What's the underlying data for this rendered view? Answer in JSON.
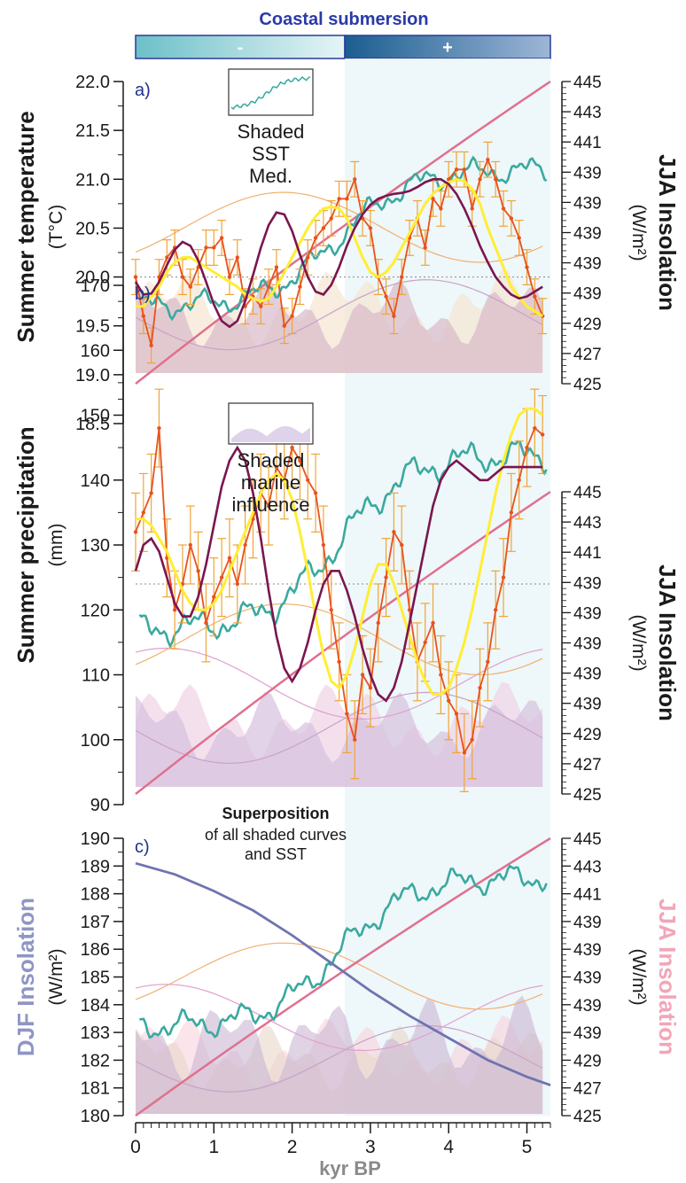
{
  "header": {
    "banner_title": "Coastal submersion",
    "minus_label": "-",
    "plus_label": "+"
  },
  "colors": {
    "sst": "#3aa99f",
    "jja": "#e0708e",
    "djf": "#6f74b0",
    "data_points": "#e8521e",
    "error_bars": "#f0a437",
    "smooth_yellow": "#ffee33",
    "smooth_purple": "#7a1650",
    "banner_light": "#8ed0d6",
    "banner_dark": "#1f6e9a",
    "axis_dark": "#1a1a1a",
    "panel_letter": "#23318c"
  },
  "shared_axis": {
    "xlabel": "kyr BP",
    "xlim": [
      0,
      5.3
    ],
    "ticks": [
      "0",
      "1",
      "2",
      "3",
      "4",
      "5"
    ]
  },
  "right_axis": {
    "ticks": [
      "445",
      "443",
      "441",
      "439",
      "439",
      "439",
      "439",
      "439",
      "429",
      "427",
      "425"
    ]
  },
  "chart_data": [
    {
      "type": "line",
      "panel": "a)",
      "ylabel_main": "Summer temperature",
      "ylabel_unit": "(T°C)",
      "right_label_main": "JJA Insolation",
      "right_label_unit": "(W/m²)",
      "ylim": [
        18.5,
        22.0
      ],
      "yticks": [
        "22.0",
        "21.5",
        "21.0",
        "20.5",
        "20.0",
        "19.5",
        "19.0",
        "18.5"
      ],
      "reference_line": 20.0,
      "inset_label": [
        "Shaded",
        "SST",
        "Med."
      ],
      "x": [
        0.0,
        0.1,
        0.2,
        0.3,
        0.4,
        0.5,
        0.6,
        0.7,
        0.8,
        0.9,
        1.0,
        1.1,
        1.2,
        1.3,
        1.4,
        1.5,
        1.6,
        1.7,
        1.8,
        1.9,
        2.0,
        2.1,
        2.2,
        2.3,
        2.4,
        2.5,
        2.6,
        2.7,
        2.8,
        2.9,
        3.0,
        3.1,
        3.2,
        3.3,
        3.4,
        3.5,
        3.6,
        3.7,
        3.8,
        3.9,
        4.0,
        4.1,
        4.2,
        4.3,
        4.4,
        4.5,
        4.6,
        4.7,
        4.8,
        4.9,
        5.0,
        5.1,
        5.2
      ],
      "series": [
        {
          "name": "",
          "values": [
            20.0,
            19.6,
            19.3,
            20.0,
            20.2,
            20.3,
            20.0,
            19.9,
            20.1,
            20.3,
            20.3,
            20.4,
            20.0,
            20.2,
            19.7,
            19.8,
            19.7,
            19.9,
            20.1,
            19.5,
            19.6,
            19.9,
            20.2,
            20.4,
            20.5,
            20.6,
            20.8,
            20.8,
            21.0,
            20.6,
            20.5,
            20.0,
            19.8,
            19.6,
            20.0,
            20.4,
            20.6,
            20.3,
            20.8,
            20.7,
            21.0,
            21.1,
            21.1,
            20.7,
            21.0,
            21.2,
            21.0,
            20.7,
            20.6,
            20.4,
            20.1,
            19.8,
            19.6
          ]
        },
        {
          "name": "",
          "values": [
            19.7,
            19.7,
            19.8,
            19.9,
            20.05,
            20.15,
            20.2,
            20.2,
            20.15,
            20.1,
            20.05,
            20.0,
            19.95,
            19.9,
            19.82,
            19.78,
            19.75,
            19.78,
            19.9,
            20.05,
            20.2,
            20.35,
            20.5,
            20.62,
            20.7,
            20.72,
            20.7,
            20.6,
            20.4,
            20.2,
            20.05,
            20.0,
            20.05,
            20.15,
            20.3,
            20.45,
            20.6,
            20.75,
            20.85,
            20.92,
            20.97,
            21.0,
            20.98,
            20.9,
            20.75,
            20.5,
            20.3,
            20.1,
            19.9,
            19.8,
            19.7,
            19.65,
            19.6
          ]
        },
        {
          "name": "",
          "values": [
            19.95,
            19.82,
            19.83,
            19.95,
            20.12,
            20.28,
            20.36,
            20.32,
            20.17,
            19.95,
            19.72,
            19.55,
            19.49,
            19.55,
            19.75,
            20.02,
            20.3,
            20.53,
            20.66,
            20.64,
            20.47,
            20.23,
            20.0,
            19.85,
            19.82,
            19.92,
            20.1,
            20.32,
            20.5,
            20.64,
            20.74,
            20.8,
            20.83,
            20.85,
            20.86,
            20.88,
            20.92,
            20.97,
            21.0,
            21.0,
            20.95,
            20.85,
            20.7,
            20.52,
            20.32,
            20.15,
            20.0,
            19.9,
            19.82,
            19.78,
            19.8,
            19.85,
            19.9
          ]
        }
      ]
    },
    {
      "type": "line",
      "panel": "b)",
      "ylabel_main": "Summer precipitation",
      "ylabel_unit": "(mm)",
      "right_label_main": "JJA Insolation",
      "right_label_unit": "(W/m²)",
      "ylim": [
        90,
        170
      ],
      "yticks": [
        "170",
        "160",
        "150",
        "140",
        "130",
        "120",
        "110",
        "100",
        "90"
      ],
      "reference_line": 124,
      "inset_label": [
        "Shaded",
        "marine",
        "influence"
      ],
      "x": [
        0.0,
        0.1,
        0.2,
        0.3,
        0.4,
        0.5,
        0.6,
        0.7,
        0.8,
        0.9,
        1.0,
        1.1,
        1.2,
        1.3,
        1.4,
        1.5,
        1.6,
        1.7,
        1.8,
        1.9,
        2.0,
        2.1,
        2.2,
        2.3,
        2.4,
        2.5,
        2.6,
        2.7,
        2.8,
        2.9,
        3.0,
        3.1,
        3.2,
        3.3,
        3.4,
        3.5,
        3.6,
        3.7,
        3.8,
        3.9,
        4.0,
        4.1,
        4.2,
        4.3,
        4.4,
        4.5,
        4.6,
        4.7,
        4.8,
        4.9,
        5.0,
        5.1,
        5.2
      ],
      "series": [
        {
          "name": "",
          "values": [
            132,
            135,
            138,
            148,
            128,
            120,
            124,
            130,
            126,
            118,
            122,
            125,
            128,
            124,
            130,
            134,
            138,
            136,
            142,
            140,
            145,
            143,
            140,
            138,
            130,
            120,
            112,
            104,
            100,
            110,
            108,
            118,
            125,
            132,
            130,
            120,
            112,
            115,
            118,
            110,
            106,
            104,
            98,
            100,
            108,
            112,
            120,
            125,
            135,
            140,
            145,
            148,
            147
          ]
        },
        {
          "name": "",
          "values": [
            134,
            134,
            133,
            131,
            129,
            126,
            123,
            121,
            120,
            120,
            121,
            123,
            126,
            129,
            132,
            135,
            138,
            140,
            141,
            140,
            137,
            132,
            126,
            119,
            113,
            109,
            108,
            110,
            114,
            119,
            124,
            127,
            127,
            124,
            120,
            116,
            112,
            109,
            107,
            107,
            108,
            111,
            115,
            120,
            126,
            132,
            138,
            143,
            147,
            150,
            151,
            151,
            150
          ]
        },
        {
          "name": "",
          "values": [
            126,
            130,
            131,
            129,
            125,
            121,
            119,
            119,
            122,
            127,
            133,
            139,
            143,
            145,
            143,
            138,
            131,
            123,
            116,
            111,
            109,
            111,
            115,
            120,
            124,
            126,
            126,
            123,
            119,
            114,
            110,
            107,
            106,
            108,
            112,
            118,
            124,
            130,
            136,
            140,
            142,
            143,
            142,
            141,
            140,
            140,
            141,
            142,
            142,
            142,
            142,
            142,
            142
          ]
        }
      ]
    },
    {
      "type": "line",
      "panel": "c)",
      "ylabel_main": "DJF Insolation",
      "ylabel_unit": "(W/m²)",
      "right_label_main": "JJA Insolation",
      "right_label_unit": "(W/m²)",
      "ylim": [
        180,
        190
      ],
      "yticks": [
        "190",
        "189",
        "188",
        "187",
        "186",
        "185",
        "184",
        "183",
        "182",
        "181",
        "180"
      ],
      "annotation_title": "Superposition",
      "annotation_lines": [
        "of all shaded curves",
        "and SST"
      ],
      "x": [
        0.0,
        0.5,
        1.0,
        1.5,
        2.0,
        2.5,
        3.0,
        3.5,
        4.0,
        4.5,
        5.0,
        5.3
      ],
      "series": [
        {
          "name": "",
          "values": [
            189.1,
            188.7,
            188.1,
            187.4,
            186.5,
            185.5,
            184.5,
            183.6,
            182.8,
            182.0,
            181.4,
            181.1
          ]
        },
        {
          "name": "",
          "values": [
            180.4,
            181.0,
            181.8,
            182.7,
            183.8,
            185.0,
            186.3,
            187.5,
            188.5,
            189.2,
            189.7,
            190.0
          ]
        }
      ]
    }
  ]
}
